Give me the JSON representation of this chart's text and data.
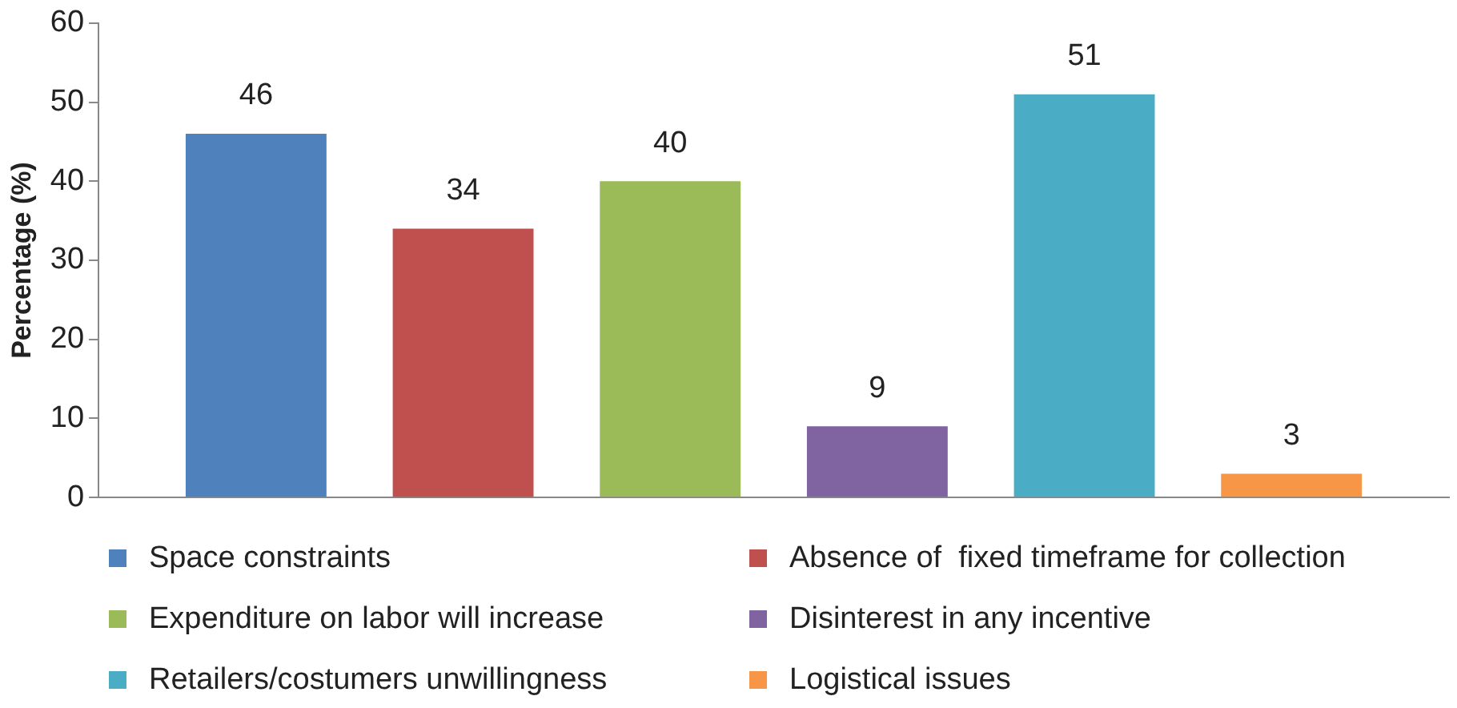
{
  "chart_data": {
    "type": "bar",
    "ylabel": "Percentage (%)",
    "categories": [
      null
    ],
    "series": [
      {
        "name": "Space constraints",
        "color": "#4f81bd",
        "values": [
          46
        ]
      },
      {
        "name": "Absence of  fixed timeframe for collection",
        "color": "#c0504d",
        "values": [
          34
        ]
      },
      {
        "name": "Expenditure on labor will increase",
        "color": "#9bbb59",
        "values": [
          40
        ]
      },
      {
        "name": "Disinterest in any incentive",
        "color": "#8064a2",
        "values": [
          9
        ]
      },
      {
        "name": "Retailers/costumers unwillingness",
        "color": "#4bacc6",
        "values": [
          51
        ]
      },
      {
        "name": "Logistical issues",
        "color": "#f79646",
        "values": [
          3
        ]
      }
    ],
    "ylim": [
      0,
      60
    ],
    "yticks": [
      0,
      10,
      20,
      30,
      40,
      50,
      60
    ],
    "data_labels": true,
    "legend": "bottom"
  }
}
